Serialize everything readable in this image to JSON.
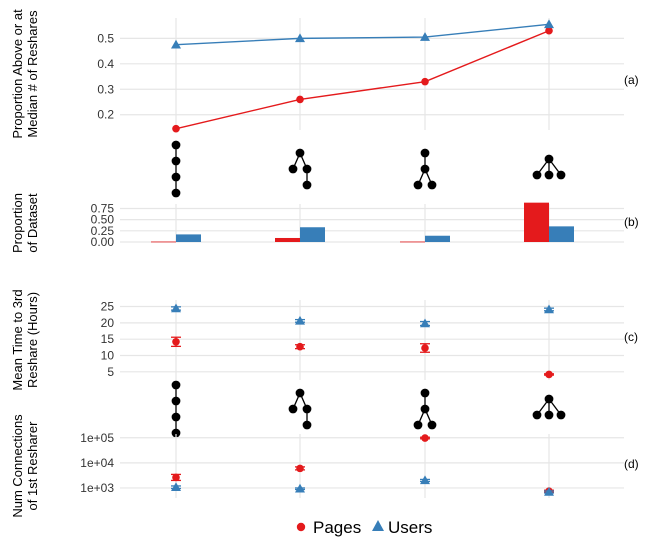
{
  "colors": {
    "pages": "#e41a1c",
    "users": "#377eb8",
    "grid": "#e6e6e6",
    "tree": "#000000"
  },
  "legend": {
    "items": [
      {
        "label": "Pages",
        "color": "#e41a1c",
        "shape": "circle"
      },
      {
        "label": "Users",
        "color": "#377eb8",
        "shape": "triangle"
      }
    ]
  },
  "chart_data": [
    {
      "panel": "(a)",
      "type": "line",
      "ylabel": [
        "Proportion Above or at",
        "Median # of Reshares"
      ],
      "yticks": [
        "0.2",
        "0.3",
        "0.4",
        "0.5"
      ],
      "yrange": [
        0.14,
        0.58
      ],
      "series": [
        {
          "name": "Pages",
          "values": [
            0.145,
            0.26,
            0.33,
            0.53
          ]
        },
        {
          "name": "Users",
          "values": [
            0.475,
            0.5,
            0.505,
            0.555
          ]
        }
      ]
    },
    {
      "panel": "(b)",
      "type": "bar",
      "ylabel": [
        "Proportion",
        "of Dataset"
      ],
      "yticks": [
        "0.00",
        "0.25",
        "0.50",
        "0.75"
      ],
      "yrange": [
        0,
        0.85
      ],
      "series": [
        {
          "name": "Pages",
          "values": [
            0.01,
            0.09,
            0.01,
            0.88
          ]
        },
        {
          "name": "Users",
          "values": [
            0.17,
            0.33,
            0.14,
            0.35
          ]
        }
      ]
    },
    {
      "panel": "(c)",
      "type": "scatter",
      "ylabel": [
        "Mean Time to 3rd",
        "Reshare (Hours)"
      ],
      "yticks": [
        "5",
        "10",
        "15",
        "20",
        "25"
      ],
      "yrange": [
        2.5,
        27
      ],
      "series": [
        {
          "name": "Pages",
          "values": [
            14.2,
            12.7,
            12.3,
            4.2
          ],
          "err": [
            1.4,
            0.6,
            1.3,
            0.2
          ]
        },
        {
          "name": "Users",
          "values": [
            24.4,
            20.6,
            19.8,
            24.1
          ],
          "err": [
            0.5,
            0.4,
            0.6,
            0.4
          ]
        }
      ]
    },
    {
      "panel": "(d)",
      "type": "scatter",
      "ylabel": [
        "Num Connections",
        "of 1st Resharer"
      ],
      "yticks": [
        "1e+03",
        "1e+04",
        "1e+05"
      ],
      "ytick_values": [
        3,
        4,
        5
      ],
      "yscale": "log10",
      "yrange": [
        2.6,
        5.15
      ],
      "series": [
        {
          "name": "Pages",
          "values": [
            3.42,
            3.78,
            4.99,
            2.87
          ],
          "err": [
            0.12,
            0.06,
            0.03,
            0.04
          ]
        },
        {
          "name": "Users",
          "values": [
            3.03,
            2.97,
            3.3,
            2.84
          ],
          "err": [
            0.05,
            0.03,
            0.04,
            0.04
          ]
        }
      ]
    }
  ]
}
